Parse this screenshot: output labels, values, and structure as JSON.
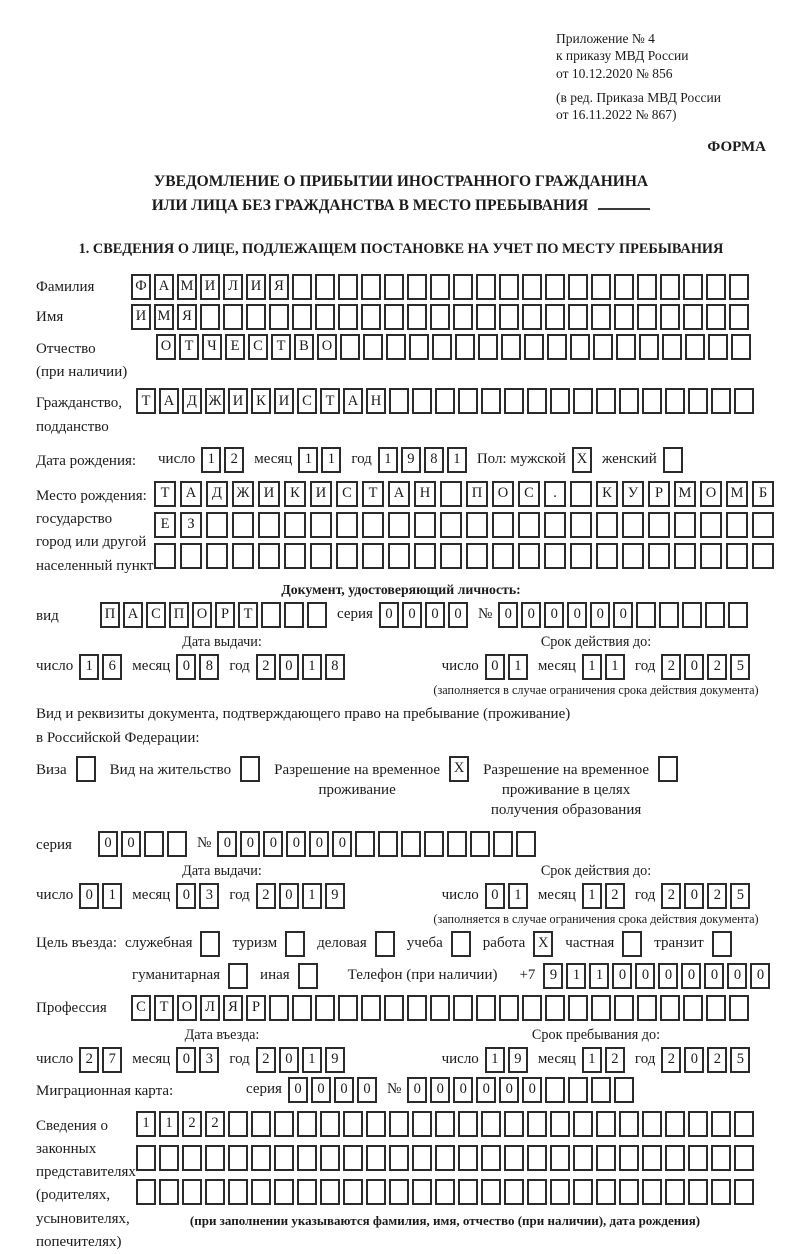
{
  "header": {
    "block1": [
      "Приложение № 4",
      "к приказу МВД России",
      "от 10.12.2020 № 856"
    ],
    "block2": [
      "(в ред. Приказа МВД России",
      "от 16.11.2022 № 867)"
    ],
    "form_label": "ФОРМА"
  },
  "title": {
    "line1": "УВЕДОМЛЕНИЕ О ПРИБЫТИИ ИНОСТРАННОГО ГРАЖДАНИНА",
    "line2": "ИЛИ ЛИЦА БЕЗ ГРАЖДАНСТВА В МЕСТО ПРЕБЫВАНИЯ"
  },
  "section1_heading": "1. СВЕДЕНИЯ О ЛИЦЕ, ПОДЛЕЖАЩЕМ ПОСТАНОВКЕ НА УЧЕТ ПО МЕСТУ ПРЕБЫВАНИЯ",
  "date_labels": {
    "day": "число",
    "month": "месяц",
    "year": "год"
  },
  "surname": {
    "label": "Фамилия",
    "cells": {
      "text": "ФАМИЛИЯ",
      "count": 27
    }
  },
  "given_name": {
    "label": "Имя",
    "cells": {
      "text": "ИМЯ",
      "count": 27
    }
  },
  "patronymic": {
    "label": [
      "Отчество",
      "(при наличии)"
    ],
    "cells": {
      "text": "ОТЧЕСТВО",
      "count": 26
    }
  },
  "citizenship": {
    "label": [
      "Гражданство,",
      "подданство"
    ],
    "cells": {
      "text": "ТАДЖИКИСТАН",
      "count": 27
    }
  },
  "birth_date": {
    "label": "Дата рождения:",
    "day": {
      "text": "12",
      "count": 2
    },
    "month": {
      "text": "11",
      "count": 2
    },
    "year": {
      "text": "1981",
      "count": 4
    },
    "gender_label": "Пол: мужской",
    "male_box": {
      "text": "X",
      "count": 1
    },
    "female_label": "женский",
    "female_box": {
      "text": "",
      "count": 1
    }
  },
  "birth_place": {
    "label": [
      "Место рождения:",
      "государство",
      "город или другой",
      "населенный пункт"
    ],
    "rows": [
      {
        "text": "ТАДЖИКИСТАН ПОС. КУРМОМБ",
        "count": 24
      },
      {
        "text": "ЕЗ",
        "count": 24
      },
      {
        "text": "",
        "count": 24
      }
    ]
  },
  "identity_doc": {
    "heading": "Документ, удостоверяющий личность:",
    "type_label": "вид",
    "type_cells": {
      "text": "ПАСПОРТ",
      "count": 10
    },
    "series_label": "серия",
    "series_cells": {
      "text": "0000",
      "count": 4
    },
    "number_label": "№",
    "number_cells": {
      "text": "000000",
      "count": 11
    },
    "issue_heading": "Дата выдачи:",
    "issue": {
      "day": {
        "text": "16",
        "count": 2
      },
      "month": {
        "text": "08",
        "count": 2
      },
      "year": {
        "text": "2018",
        "count": 4
      }
    },
    "valid_heading": "Срок действия до:",
    "valid": {
      "day": {
        "text": "01",
        "count": 2
      },
      "month": {
        "text": "11",
        "count": 2
      },
      "year": {
        "text": "2025",
        "count": 4
      }
    },
    "valid_note": "(заполняется в случае ограничения срока действия документа)"
  },
  "residence_doc": {
    "intro": [
      "Вид и реквизиты документа, подтверждающего право на пребывание (проживание)",
      "в Российской Федерации:"
    ],
    "options": [
      {
        "label": [
          "Виза"
        ],
        "box": {
          "text": "",
          "count": 1
        }
      },
      {
        "label": [
          "Вид на жительство"
        ],
        "box": {
          "text": "",
          "count": 1
        }
      },
      {
        "label": [
          "Разрешение на временное",
          "проживание"
        ],
        "box": {
          "text": "X",
          "count": 1
        }
      },
      {
        "label": [
          "Разрешение на временное",
          "проживание в целях",
          "получения образования"
        ],
        "box": {
          "text": "",
          "count": 1
        }
      }
    ],
    "series_label": "серия",
    "series_cells": {
      "text": "00",
      "count": 4
    },
    "number_label": "№",
    "number_cells": {
      "text": "000000",
      "count": 14
    },
    "issue_heading": "Дата выдачи:",
    "issue": {
      "day": {
        "text": "01",
        "count": 2
      },
      "month": {
        "text": "03",
        "count": 2
      },
      "year": {
        "text": "2019",
        "count": 4
      }
    },
    "valid_heading": "Срок действия до:",
    "valid": {
      "day": {
        "text": "01",
        "count": 2
      },
      "month": {
        "text": "12",
        "count": 2
      },
      "year": {
        "text": "2025",
        "count": 4
      }
    },
    "valid_note": "(заполняется в случае ограничения срока действия документа)"
  },
  "visit_purpose": {
    "label": "Цель въезда:",
    "row1": [
      {
        "label": "служебная",
        "box": {
          "text": "",
          "count": 1
        }
      },
      {
        "label": "туризм",
        "box": {
          "text": "",
          "count": 1
        }
      },
      {
        "label": "деловая",
        "box": {
          "text": "",
          "count": 1
        }
      },
      {
        "label": "учеба",
        "box": {
          "text": "",
          "count": 1
        }
      },
      {
        "label": "работа",
        "box": {
          "text": "X",
          "count": 1
        }
      },
      {
        "label": "частная",
        "box": {
          "text": "",
          "count": 1
        }
      },
      {
        "label": "транзит",
        "box": {
          "text": "",
          "count": 1
        }
      }
    ],
    "row2": [
      {
        "label": "гуманитарная",
        "box": {
          "text": "",
          "count": 1
        }
      },
      {
        "label": "иная",
        "box": {
          "text": "",
          "count": 1
        }
      }
    ],
    "phone_label": "Телефон (при наличии)",
    "phone_prefix": "+7",
    "phone_cells": {
      "text": "9110000000",
      "count": 10
    }
  },
  "profession": {
    "label": "Профессия",
    "cells": {
      "text": "СТОЛЯР",
      "count": 27
    }
  },
  "entry": {
    "date_heading": "Дата въезда:",
    "date": {
      "day": {
        "text": "27",
        "count": 2
      },
      "month": {
        "text": "03",
        "count": 2
      },
      "year": {
        "text": "2019",
        "count": 4
      }
    },
    "stay_heading": "Срок пребывания до:",
    "stay": {
      "day": {
        "text": "19",
        "count": 2
      },
      "month": {
        "text": "12",
        "count": 2
      },
      "year": {
        "text": "2025",
        "count": 4
      }
    }
  },
  "migration_card": {
    "label": "Миграционная карта:",
    "series_label": "серия",
    "series_cells": {
      "text": "0000",
      "count": 4
    },
    "number_label": "№",
    "number_cells": {
      "text": "000000",
      "count": 10
    }
  },
  "representatives": {
    "label": [
      "Сведения о",
      "законных",
      "представителях",
      "(родителях,",
      "усыновителях,",
      "попечителях)"
    ],
    "rows": [
      {
        "text": "1122",
        "count": 27
      },
      {
        "text": "",
        "count": 27
      },
      {
        "text": "",
        "count": 27
      }
    ],
    "note": "(при заполнении указываются фамилия, имя, отчество (при наличии), дата рождения)"
  }
}
